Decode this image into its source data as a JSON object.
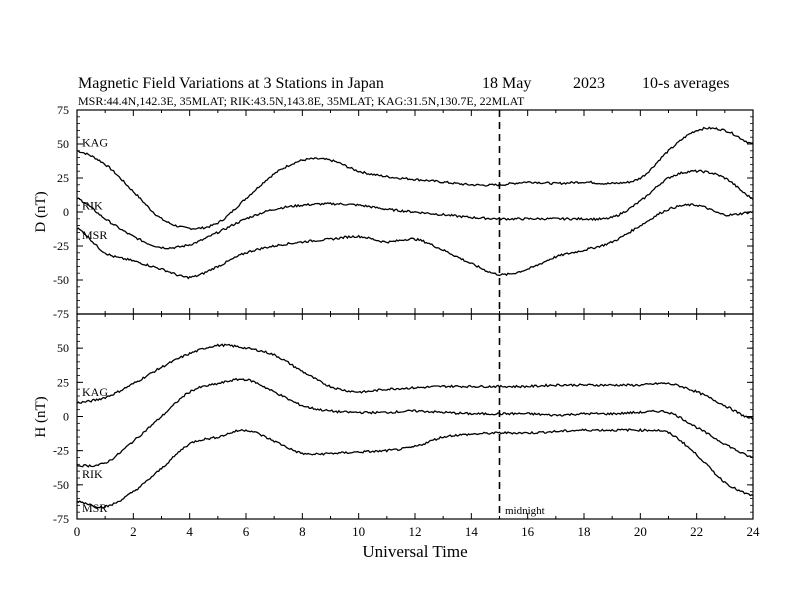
{
  "header": {
    "title": "Magnetic Field Variations at 3 Stations in Japan",
    "date": "18 May",
    "year": "2023",
    "averaging": "10-s averages",
    "stations_line": "MSR:44.4N,142.3E, 35MLAT;  RIK:43.5N,143.8E, 35MLAT;  KAG:31.5N,130.7E, 22MLAT"
  },
  "chart_data": [
    {
      "type": "line",
      "panel": "D",
      "ylabel": "D (nT)",
      "xlim": [
        0,
        24
      ],
      "ylim": [
        -75,
        75
      ],
      "yticks": [
        "75",
        "50",
        "25",
        "0",
        "-25",
        "-50",
        "-75"
      ],
      "marker_line": {
        "x": 15,
        "style": "dashed"
      },
      "series": [
        {
          "name": "KAG",
          "x": [
            0,
            1,
            2,
            3,
            4,
            5,
            6,
            7,
            8,
            9,
            10,
            11,
            12,
            13,
            14,
            15,
            16,
            17,
            18,
            19,
            20,
            21,
            22,
            23,
            24
          ],
          "values": [
            45,
            35,
            15,
            -5,
            -12,
            -8,
            10,
            28,
            38,
            38,
            30,
            26,
            24,
            22,
            20,
            20,
            22,
            21,
            22,
            21,
            25,
            45,
            60,
            60,
            50
          ]
        },
        {
          "name": "RIK",
          "x": [
            0,
            1,
            2,
            3,
            4,
            5,
            6,
            7,
            8,
            9,
            10,
            11,
            12,
            13,
            14,
            15,
            16,
            17,
            18,
            19,
            20,
            21,
            22,
            23,
            24
          ],
          "values": [
            10,
            -5,
            -18,
            -26,
            -24,
            -15,
            -5,
            2,
            5,
            6,
            5,
            2,
            0,
            -2,
            -4,
            -5,
            -5,
            -5,
            -5,
            -4,
            8,
            25,
            30,
            25,
            10
          ]
        },
        {
          "name": "MSR",
          "x": [
            0,
            1,
            2,
            3,
            4,
            5,
            6,
            7,
            8,
            9,
            10,
            11,
            12,
            13,
            14,
            15,
            16,
            17,
            18,
            19,
            20,
            21,
            22,
            23,
            24
          ],
          "values": [
            -12,
            -30,
            -36,
            -42,
            -48,
            -40,
            -30,
            -25,
            -22,
            -20,
            -18,
            -22,
            -20,
            -28,
            -38,
            -46,
            -42,
            -33,
            -28,
            -22,
            -10,
            2,
            5,
            -2,
            0
          ]
        }
      ]
    },
    {
      "type": "line",
      "panel": "H",
      "ylabel": "H (nT)",
      "xlabel": "Universal Time",
      "xlim": [
        0,
        24
      ],
      "ylim": [
        -75,
        75
      ],
      "xticks": [
        "0",
        "2",
        "4",
        "6",
        "8",
        "10",
        "12",
        "14",
        "16",
        "18",
        "20",
        "22",
        "24"
      ],
      "yticks": [
        "50",
        "25",
        "0",
        "-25",
        "-50",
        "-75"
      ],
      "marker_line": {
        "x": 15,
        "style": "dashed",
        "label": "midnight"
      },
      "series": [
        {
          "name": "KAG",
          "x": [
            0,
            1,
            2,
            3,
            4,
            5,
            6,
            7,
            8,
            9,
            10,
            11,
            12,
            13,
            14,
            15,
            16,
            17,
            18,
            19,
            20,
            21,
            22,
            23,
            24
          ],
          "values": [
            10,
            14,
            24,
            36,
            46,
            52,
            50,
            45,
            33,
            22,
            18,
            20,
            21,
            22,
            22,
            22,
            22,
            23,
            23,
            23,
            23,
            24,
            18,
            8,
            -2
          ]
        },
        {
          "name": "RIK",
          "x": [
            0,
            1,
            2,
            3,
            4,
            5,
            6,
            7,
            8,
            9,
            10,
            11,
            12,
            13,
            14,
            15,
            16,
            17,
            18,
            19,
            20,
            21,
            22,
            23,
            24
          ],
          "values": [
            -36,
            -34,
            -18,
            0,
            18,
            24,
            27,
            18,
            8,
            4,
            3,
            3,
            4,
            3,
            2,
            2,
            2,
            1,
            2,
            2,
            3,
            3,
            -8,
            -20,
            -30
          ]
        },
        {
          "name": "MSR",
          "x": [
            0,
            1,
            2,
            3,
            4,
            5,
            6,
            7,
            8,
            9,
            10,
            11,
            12,
            13,
            14,
            15,
            16,
            17,
            18,
            19,
            20,
            21,
            22,
            23,
            24
          ],
          "values": [
            -62,
            -66,
            -55,
            -38,
            -20,
            -15,
            -10,
            -18,
            -27,
            -27,
            -26,
            -25,
            -22,
            -15,
            -13,
            -12,
            -12,
            -11,
            -10,
            -10,
            -10,
            -12,
            -28,
            -48,
            -58
          ]
        }
      ]
    }
  ]
}
